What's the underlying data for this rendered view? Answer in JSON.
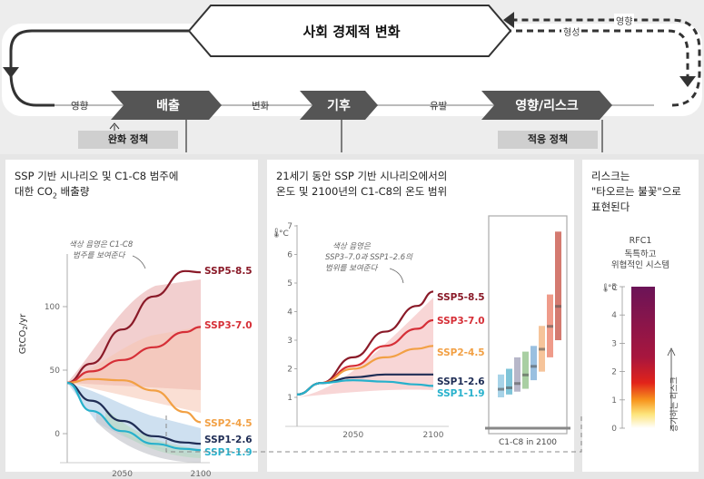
{
  "top": {
    "society_label": "사회 경제적 변화",
    "formation_label": "형성",
    "influence_label_top": "영향",
    "influence_label_left": "영향",
    "change_label": "변화",
    "induce_label": "유발",
    "emissions_label": "배출",
    "climate_label": "기후",
    "impacts_label": "영향/리스크",
    "mitigation_policy": "완화 정책",
    "adaptation_policy": "적응 정책"
  },
  "panel1": {
    "title_line1": "SSP 기반 시나리오 및 C1-C8 범주에",
    "title_pre": "대한 CO",
    "title_sub": "2",
    "title_post": " 배출량",
    "annotation_line1": "색상 음영은 C1-C8",
    "annotation_line2": "범주를 보여준다",
    "chart_data": {
      "type": "line",
      "ylabel": "GtCO₂/yr",
      "yticks": [
        "100",
        "50",
        "0"
      ],
      "xticks": [
        "2050",
        "2100"
      ],
      "x": [
        2015,
        2030,
        2050,
        2070,
        2090,
        2100
      ],
      "series": [
        {
          "name": "SSP5-8.5",
          "color": "#8a1a28",
          "values": [
            40,
            55,
            82,
            108,
            128,
            127
          ]
        },
        {
          "name": "SSP3-7.0",
          "color": "#d62f37",
          "values": [
            40,
            49,
            58,
            68,
            80,
            84
          ]
        },
        {
          "name": "SSP2-4.5",
          "color": "#f2a044",
          "values": [
            40,
            43,
            42,
            34,
            17,
            9
          ]
        },
        {
          "name": "SSP1-2.6",
          "color": "#1f2d55",
          "values": [
            40,
            26,
            10,
            -2,
            -7,
            -8
          ]
        },
        {
          "name": "SSP1-1.9",
          "color": "#27b1cc",
          "values": [
            40,
            18,
            2,
            -8,
            -12,
            -13
          ]
        }
      ]
    }
  },
  "panel2": {
    "title_line1": "21세기 동안 SSP 기반 시나리오에서의",
    "title_line2": "온도 및 2100년의 C1-C8의 온도 범위",
    "annotation_line1": "색상 음영은",
    "annotation_line2": "SSP3–7.0과 SSP1–2.6의",
    "annotation_line3": "범위를 보여준다",
    "unit": "°C",
    "c1c8_label": "C1-C8 in 2100",
    "chart_data": {
      "type": "line",
      "ylabel": "°C",
      "yticks": [
        "7",
        "6",
        "5",
        "4",
        "3",
        "2",
        "1"
      ],
      "xticks": [
        "2050",
        "2100"
      ],
      "x": [
        2015,
        2030,
        2050,
        2070,
        2090,
        2100
      ],
      "series": [
        {
          "name": "SSP5-8.5",
          "color": "#8a1a28",
          "values": [
            1.1,
            1.5,
            2.4,
            3.3,
            4.2,
            4.7
          ]
        },
        {
          "name": "SSP3-7.0",
          "color": "#d62f37",
          "values": [
            1.1,
            1.5,
            2.1,
            2.8,
            3.4,
            3.7
          ]
        },
        {
          "name": "SSP2-4.5",
          "color": "#f2a044",
          "values": [
            1.1,
            1.5,
            2.0,
            2.4,
            2.7,
            2.8
          ]
        },
        {
          "name": "SSP1-2.6",
          "color": "#1f2d55",
          "values": [
            1.1,
            1.5,
            1.7,
            1.8,
            1.8,
            1.8
          ]
        },
        {
          "name": "SSP1-1.9",
          "color": "#27b1cc",
          "values": [
            1.1,
            1.5,
            1.6,
            1.55,
            1.45,
            1.4
          ]
        }
      ]
    }
  },
  "panel3": {
    "title_line1": "리스크는",
    "title_line2": "\"타오르는 불꽃\"으로",
    "title_line3": "표현된다",
    "rfc_line1": "RFC1",
    "rfc_line2": "독특하고",
    "rfc_line3": "위협적인 시스템",
    "unit": "°C",
    "yticks": [
      "5",
      "4",
      "3",
      "2",
      "1",
      "0"
    ],
    "risk_axis_label": "증가하는 리스크"
  }
}
